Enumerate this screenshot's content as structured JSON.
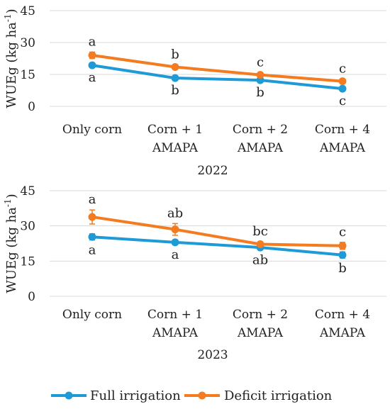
{
  "chart_data": [
    {
      "type": "line",
      "title": "",
      "xlabel": "2022",
      "ylabel": "WUEg (kg ha-1)",
      "ylabel_main": "WUEg (kg ha",
      "ylabel_sup": "-1",
      "ylabel_close": ")",
      "ylim": [
        0,
        45
      ],
      "yticks": [
        "0",
        "15",
        "30",
        "45"
      ],
      "categories": [
        [
          "Only corn"
        ],
        [
          "Corn + 1",
          "AMAPA"
        ],
        [
          "Corn + 2",
          "AMAPA"
        ],
        [
          "Corn + 4",
          "AMAPA"
        ]
      ],
      "series": [
        {
          "name": "Full irrigation",
          "color": "#1e9bd7",
          "values": [
            19.3,
            13.3,
            12.3,
            8.3
          ],
          "err": [
            1.0,
            1.0,
            1.0,
            1.0
          ],
          "letters": [
            "a",
            "b",
            "b",
            "c"
          ],
          "letter_pos": "below"
        },
        {
          "name": "Deficit irrigation",
          "color": "#f47b20",
          "values": [
            24.0,
            18.5,
            14.8,
            11.8
          ],
          "err": [
            1.5,
            1.0,
            1.0,
            1.0
          ],
          "letters": [
            "a",
            "b",
            "c",
            "c"
          ],
          "letter_pos": "above"
        }
      ],
      "grid": "horizontal"
    },
    {
      "type": "line",
      "title": "",
      "xlabel": "2023",
      "ylabel": "WUEg (kg ha-1)",
      "ylabel_main": "WUEg (kg ha",
      "ylabel_sup": "-1",
      "ylabel_close": ")",
      "ylim": [
        0,
        45
      ],
      "yticks": [
        "0",
        "15",
        "30",
        "45"
      ],
      "categories": [
        [
          "Only corn"
        ],
        [
          "Corn + 1",
          "AMAPA"
        ],
        [
          "Corn + 2",
          "AMAPA"
        ],
        [
          "Corn + 4",
          "AMAPA"
        ]
      ],
      "series": [
        {
          "name": "Full irrigation",
          "color": "#1e9bd7",
          "values": [
            25.3,
            23.0,
            20.8,
            17.6
          ],
          "err": [
            1.3,
            1.0,
            1.0,
            1.3
          ],
          "letters": [
            "a",
            "a",
            "ab",
            "b"
          ],
          "letter_pos": "below"
        },
        {
          "name": "Deficit irrigation",
          "color": "#f47b20",
          "values": [
            33.8,
            28.5,
            22.2,
            21.5
          ],
          "err": [
            3.0,
            2.5,
            1.0,
            1.5
          ],
          "letters": [
            "a",
            "ab",
            "bc",
            "c"
          ],
          "letter_pos": "above"
        }
      ],
      "grid": "horizontal"
    }
  ],
  "legend": {
    "position": "bottom",
    "items": [
      {
        "label": "Full irrigation",
        "color": "#1e9bd7"
      },
      {
        "label": "Deficit irrigation",
        "color": "#f47b20"
      }
    ]
  }
}
